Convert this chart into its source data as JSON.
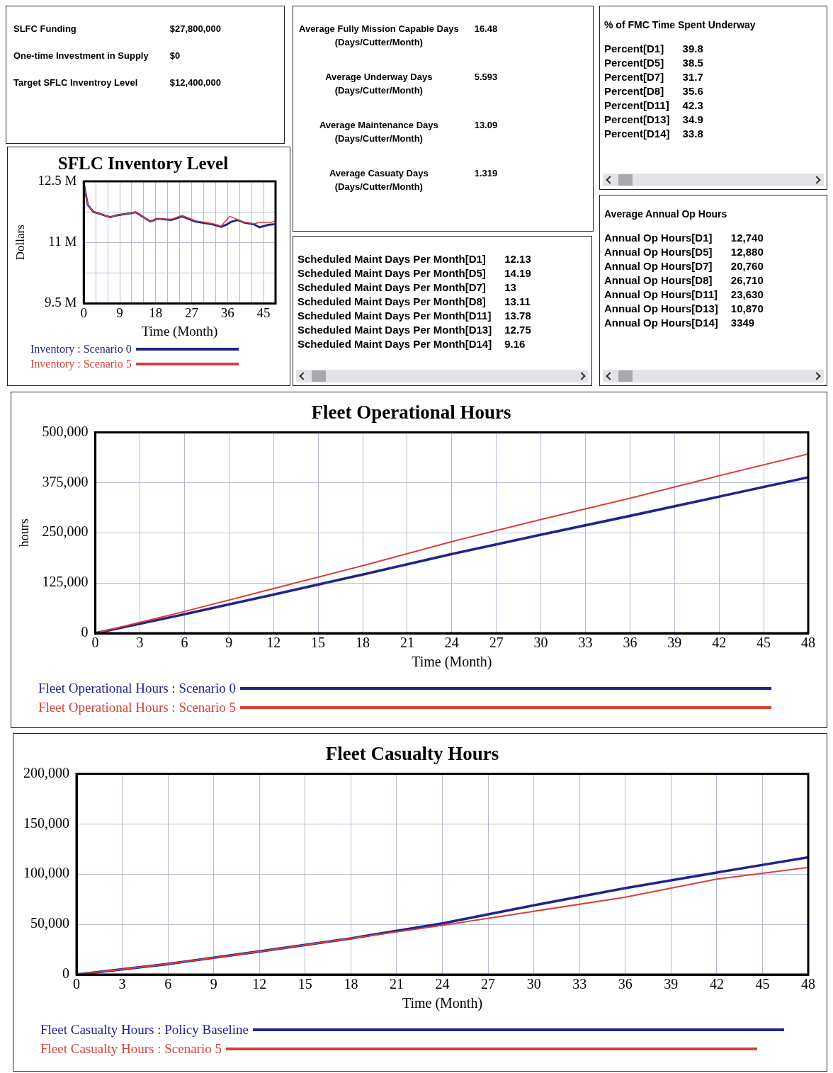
{
  "chart_data": [
    {
      "type": "other",
      "categories": [
        "SLFC Funding",
        "One-time Investment in Supply",
        "Target SFLC Inventroy Level"
      ],
      "value_labels": [
        "$27,800,000",
        "$0",
        "$12,400,000"
      ]
    },
    {
      "type": "other",
      "categories": [
        "Average Fully Mission Capable Days\n(Days/Cutter/Month)",
        "Average Underway Days\n(Days/Cutter/Month)",
        "Average Maintenance Days\n(Days/Cutter/Month)",
        "Average Casuaty Days\n(Days/Cutter/Month)"
      ],
      "value_labels": [
        "16.48",
        "5.593",
        "13.09",
        "1.319"
      ]
    },
    {
      "type": "other",
      "title": "% of FMC Time Spent Underway",
      "categories": [
        "Percent[D1]",
        "Percent[D5]",
        "Percent[D7]",
        "Percent[D8]",
        "Percent[D11]",
        "Percent[D13]",
        "Percent[D14]"
      ],
      "value_labels": [
        "39.8",
        "38.5",
        "31.7",
        "35.6",
        "42.3",
        "34.9",
        "33.8"
      ]
    },
    {
      "type": "line",
      "title": "SFLC Inventory Level",
      "xlabel": "Time (Month)",
      "ylabel": "Dollars",
      "xlim": [
        0,
        48
      ],
      "xticks": [
        0,
        {
          "value": 3,
          "label": null
        },
        {
          "value": 6,
          "label": null
        },
        9,
        {
          "value": 12,
          "label": null
        },
        {
          "value": 15,
          "label": null
        },
        18,
        {
          "value": 21,
          "label": null
        },
        {
          "value": 24,
          "label": null
        },
        27,
        {
          "value": 30,
          "label": null
        },
        {
          "value": 33,
          "label": null
        },
        36,
        {
          "value": 39,
          "label": null
        },
        {
          "value": 42,
          "label": null
        },
        45,
        {
          "value": 48,
          "label": null
        }
      ],
      "ylim": [
        9500000,
        12500000
      ],
      "yticks": [
        {
          "value": 9500000,
          "label": "9.5 M"
        },
        {
          "value": 10250000,
          "label": null
        },
        {
          "value": 11000000,
          "label": "11 M"
        },
        {
          "value": 11750000,
          "label": null
        },
        {
          "value": 12500000,
          "label": "12.5 M"
        }
      ],
      "grid": true,
      "legend": "bottom",
      "series": [
        {
          "name": "Inventory : Scenario 0",
          "color": "#23238a",
          "x": [
            0,
            1,
            2.4,
            6.6,
            8,
            12,
            13,
            16.7,
            18.4,
            21.9,
            24.6,
            28,
            32.3,
            34.4,
            35.8,
            36.8,
            38.5,
            40,
            42.7,
            44,
            46.2,
            48
          ],
          "values": [
            12450000,
            11920000,
            11750000,
            11620000,
            11660000,
            11720000,
            11740000,
            11510000,
            11580000,
            11550000,
            11640000,
            11510000,
            11440000,
            11380000,
            11440000,
            11500000,
            11550000,
            11490000,
            11440000,
            11370000,
            11430000,
            11450000
          ]
        },
        {
          "name": "Inventory : Scenario 5",
          "color": "#d8403a",
          "x": [
            0,
            1,
            2.4,
            6.6,
            8,
            12,
            13,
            16.7,
            18.4,
            21.9,
            24.6,
            28,
            32.3,
            34.4,
            36.5,
            38,
            40,
            42.7,
            44,
            47,
            48
          ],
          "values": [
            12450000,
            11920000,
            11750000,
            11620000,
            11660000,
            11720000,
            11740000,
            11510000,
            11580000,
            11570000,
            11660000,
            11530000,
            11460000,
            11400000,
            11640000,
            11580000,
            11500000,
            11460000,
            11490000,
            11490000,
            11530000
          ]
        }
      ]
    },
    {
      "type": "other",
      "categories": [
        "Scheduled Maint Days Per Month[D1]",
        "Scheduled Maint Days Per Month[D5]",
        "Scheduled Maint Days Per Month[D7]",
        "Scheduled Maint Days Per Month[D8]",
        "Scheduled Maint Days Per Month[D11]",
        "Scheduled Maint Days Per Month[D13]",
        "Scheduled Maint Days Per Month[D14]"
      ],
      "value_labels": [
        "12.13",
        "14.19",
        "13",
        "13.11",
        "13.78",
        "12.75",
        "9.16"
      ]
    },
    {
      "type": "other",
      "title": "Average Annual Op Hours",
      "categories": [
        "Annual Op Hours[D1]",
        "Annual Op Hours[D5]",
        "Annual Op Hours[D7]",
        "Annual Op Hours[D8]",
        "Annual Op Hours[D11]",
        "Annual Op Hours[D13]",
        "Annual Op Hours[D14]"
      ],
      "value_labels": [
        "12,740",
        "12,880",
        "20,760",
        "26,710",
        "23,630",
        "10,870",
        "3349"
      ]
    },
    {
      "type": "line",
      "title": "Fleet Operational Hours",
      "xlabel": "Time (Month)",
      "ylabel": "hours",
      "xlim": [
        0,
        48
      ],
      "xticks": [
        0,
        3,
        6,
        9,
        12,
        15,
        18,
        21,
        24,
        27,
        30,
        33,
        36,
        39,
        42,
        45,
        48
      ],
      "ylim": [
        0,
        500000
      ],
      "yticks": [
        0,
        {
          "value": 125000,
          "label": "125,000"
        },
        {
          "value": 250000,
          "label": "250,000"
        },
        {
          "value": 375000,
          "label": "375,000"
        },
        {
          "value": 500000,
          "label": "500,000"
        }
      ],
      "grid": true,
      "legend": "bottom",
      "series": [
        {
          "name": "Fleet Operational Hours : Scenario 0",
          "color": "#23238a",
          "x": [
            0,
            6,
            12,
            18,
            24,
            30,
            36,
            42,
            48
          ],
          "values": [
            0,
            47000,
            96000,
            146000,
            197000,
            245000,
            292000,
            340000,
            388000
          ]
        },
        {
          "name": "Fleet Operational Hours : Scenario 5",
          "color": "#d8403a",
          "x": [
            0,
            6,
            12,
            18,
            24,
            30,
            36,
            42,
            48
          ],
          "values": [
            0,
            54000,
            111000,
            168000,
            228000,
            283000,
            336000,
            392000,
            446000
          ]
        }
      ]
    },
    {
      "type": "line",
      "title": "Fleet Casualty Hours",
      "xlabel": "Time (Month)",
      "xlim": [
        0,
        48
      ],
      "xticks": [
        0,
        3,
        6,
        9,
        12,
        15,
        18,
        21,
        24,
        27,
        30,
        33,
        36,
        39,
        42,
        45,
        48
      ],
      "ylim": [
        0,
        200000
      ],
      "yticks": [
        0,
        {
          "value": 50000,
          "label": "50,000"
        },
        {
          "value": 100000,
          "label": "100,000"
        },
        {
          "value": 150000,
          "label": "150,000"
        },
        {
          "value": 200000,
          "label": "200,000"
        }
      ],
      "grid": true,
      "legend": "bottom",
      "series": [
        {
          "name": "Fleet Casualty Hours : Policy Baseline",
          "color": "#23238a",
          "x": [
            0,
            6,
            12,
            18,
            24,
            30,
            36,
            42,
            48
          ],
          "values": [
            0,
            10500,
            23000,
            36000,
            51000,
            69000,
            86000,
            101600,
            116700
          ]
        },
        {
          "name": "Fleet Casualty Hours : Scenario 5",
          "color": "#d8403a",
          "x": [
            0,
            6,
            12,
            18,
            24,
            30,
            36,
            42,
            48
          ],
          "values": [
            0,
            10500,
            23000,
            36000,
            49000,
            63000,
            77000,
            95000,
            106700
          ]
        }
      ]
    }
  ]
}
